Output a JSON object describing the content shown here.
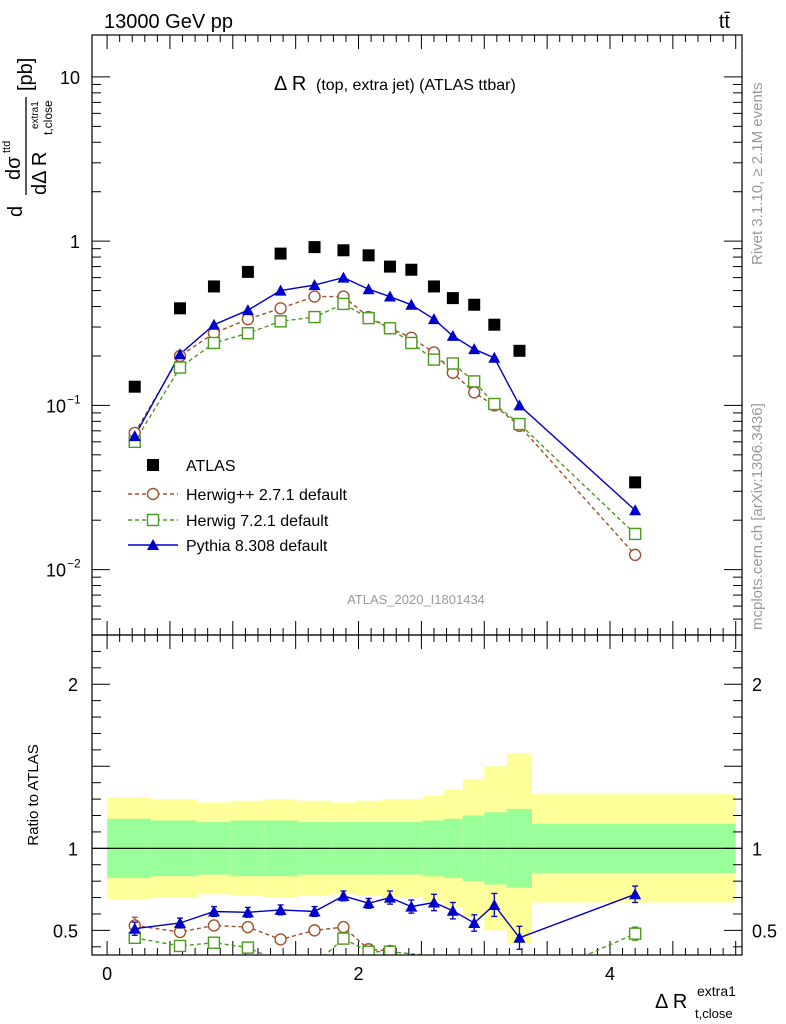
{
  "header": {
    "left": "13000 GeV pp",
    "right": "tt̄"
  },
  "side_labels": {
    "rivet": "Rivet 3.1.10, ≥ 2.1M events",
    "mcplots": "mcplots.cern.ch [arXiv:1306.3436]"
  },
  "watermark": "ATLAS_2020_I1801434",
  "colors": {
    "atlas": "#000000",
    "herwigpp": "#a0522d",
    "herwig7": "#4a9a1c",
    "pythia": "#0000cc",
    "band_inner": "#99ff99",
    "band_outer": "#ffff99"
  },
  "chart_data": [
    {
      "type": "scatter",
      "title": "Δ R (top, extra jet) (ATLAS ttbar)",
      "title_main": "Δ R",
      "title_sub": "(top, extra jet) (ATLAS ttbar)",
      "ylabel": {
        "num": "dσ",
        "num_sup": "ttd",
        "den": "dΔ R",
        "den_sub": "t,close",
        "den_sup": "extra1",
        "unit": "[pb]"
      },
      "xlim": [
        -0.12,
        5.05
      ],
      "ylim": [
        0.004,
        18
      ],
      "yscale": "log",
      "y_ticks": [
        {
          "value": 0.01,
          "base": "10",
          "exp": "−2"
        },
        {
          "value": 0.1,
          "base": "10",
          "exp": "−1"
        },
        {
          "value": 1,
          "base": "1",
          "exp": ""
        },
        {
          "value": 10,
          "base": "10",
          "exp": ""
        }
      ],
      "legend_position": "lower-left",
      "series": [
        {
          "name": "ATLAS",
          "marker": "filled-square",
          "x": [
            0.22,
            0.58,
            0.85,
            1.12,
            1.38,
            1.65,
            1.88,
            2.08,
            2.25,
            2.42,
            2.6,
            2.75,
            2.92,
            3.08,
            3.28,
            4.2
          ],
          "y": [
            0.13,
            0.39,
            0.53,
            0.65,
            0.84,
            0.92,
            0.88,
            0.82,
            0.7,
            0.67,
            0.53,
            0.45,
            0.41,
            0.31,
            0.215,
            0.034
          ]
        },
        {
          "name": "Herwig++ 2.7.1 default",
          "marker": "open-circle",
          "x": [
            0.22,
            0.58,
            0.85,
            1.12,
            1.38,
            1.65,
            1.88,
            2.08,
            2.25,
            2.42,
            2.6,
            2.75,
            2.92,
            3.08,
            3.28,
            4.2
          ],
          "y": [
            0.068,
            0.2,
            0.275,
            0.335,
            0.39,
            0.46,
            0.46,
            0.345,
            0.295,
            0.258,
            0.21,
            0.158,
            0.12,
            0.1,
            0.075,
            0.0123
          ]
        },
        {
          "name": "Herwig 7.2.1 default",
          "marker": "open-square",
          "x": [
            0.22,
            0.58,
            0.85,
            1.12,
            1.38,
            1.65,
            1.88,
            2.08,
            2.25,
            2.42,
            2.6,
            2.75,
            2.92,
            3.08,
            3.28,
            4.2
          ],
          "y": [
            0.06,
            0.17,
            0.24,
            0.275,
            0.325,
            0.345,
            0.415,
            0.34,
            0.295,
            0.24,
            0.19,
            0.18,
            0.14,
            0.102,
            0.077,
            0.0165
          ]
        },
        {
          "name": "Pythia 8.308 default",
          "marker": "filled-triangle",
          "x": [
            0.22,
            0.58,
            0.85,
            1.12,
            1.38,
            1.65,
            1.88,
            2.08,
            2.25,
            2.42,
            2.6,
            2.75,
            2.92,
            3.08,
            3.28,
            4.2
          ],
          "y": [
            0.065,
            0.205,
            0.31,
            0.38,
            0.5,
            0.54,
            0.6,
            0.51,
            0.46,
            0.41,
            0.335,
            0.265,
            0.22,
            0.195,
            0.1,
            0.023
          ]
        }
      ]
    },
    {
      "type": "scatter",
      "ylabel": "Ratio to ATLAS",
      "xlabel": {
        "main": "Δ R",
        "sub": "t,close",
        "sup": "extra1"
      },
      "xlim": [
        -0.12,
        5.05
      ],
      "ylim": [
        0.35,
        2.3
      ],
      "x_ticks": [
        {
          "value": 0,
          "label": "0"
        },
        {
          "value": 2,
          "label": "2"
        },
        {
          "value": 4,
          "label": "4"
        }
      ],
      "y_ticks": [
        {
          "value": 0.5,
          "label": "0.5"
        },
        {
          "value": 1,
          "label": "1"
        },
        {
          "value": 2,
          "label": "2"
        }
      ],
      "bands": {
        "edges": [
          0.0,
          0.35,
          0.72,
          0.98,
          1.25,
          1.52,
          1.78,
          1.98,
          2.18,
          2.33,
          2.51,
          2.68,
          2.83,
          3.0,
          3.18,
          3.38,
          5.0
        ],
        "inner_lo": [
          0.82,
          0.83,
          0.84,
          0.83,
          0.83,
          0.84,
          0.84,
          0.84,
          0.84,
          0.84,
          0.83,
          0.82,
          0.8,
          0.78,
          0.76,
          0.85
        ],
        "inner_hi": [
          1.18,
          1.17,
          1.16,
          1.17,
          1.17,
          1.16,
          1.16,
          1.16,
          1.16,
          1.16,
          1.17,
          1.18,
          1.2,
          1.22,
          1.24,
          1.15
        ],
        "outer_lo": [
          0.69,
          0.7,
          0.72,
          0.71,
          0.7,
          0.71,
          0.72,
          0.71,
          0.7,
          0.7,
          0.68,
          0.64,
          0.58,
          0.5,
          0.42,
          0.67
        ],
        "outer_hi": [
          1.31,
          1.3,
          1.28,
          1.29,
          1.3,
          1.29,
          1.28,
          1.29,
          1.3,
          1.3,
          1.32,
          1.36,
          1.42,
          1.5,
          1.58,
          1.33
        ]
      },
      "series": [
        {
          "name": "Herwig++ 2.7.1 default",
          "x": [
            0.22,
            0.58,
            0.85,
            1.12,
            1.38,
            1.65,
            1.88,
            2.08,
            2.25
          ],
          "y": [
            0.53,
            0.49,
            0.53,
            0.52,
            0.445,
            0.5,
            0.52,
            0.385,
            0.375
          ],
          "err": [
            0.05,
            0.03,
            0.03,
            0.03,
            0.02,
            0.02,
            0.03,
            0.03,
            0.03
          ]
        },
        {
          "name": "Herwig 7.2.1 default",
          "x": [
            0.22,
            0.58,
            0.85,
            1.12,
            1.38,
            1.65,
            1.88,
            2.08,
            2.25,
            3.58,
            4.2
          ],
          "y": [
            0.455,
            0.405,
            0.425,
            0.395,
            0.31,
            0.29,
            0.45,
            0.37,
            0.37,
            0.27,
            0.48
          ],
          "err": [
            0.03,
            0.02,
            0.02,
            0.02,
            0.02,
            0.02,
            0.02,
            0.02,
            0.02,
            0.02,
            0.04
          ]
        },
        {
          "name": "Pythia 8.308 default",
          "x": [
            0.22,
            0.58,
            0.85,
            1.12,
            1.38,
            1.65,
            1.88,
            2.08,
            2.25,
            2.42,
            2.6,
            2.75,
            2.92,
            3.08,
            3.28,
            4.2
          ],
          "y": [
            0.51,
            0.545,
            0.615,
            0.61,
            0.625,
            0.615,
            0.71,
            0.665,
            0.7,
            0.645,
            0.67,
            0.62,
            0.545,
            0.655,
            0.455,
            0.72
          ],
          "err": [
            0.04,
            0.03,
            0.03,
            0.03,
            0.03,
            0.03,
            0.03,
            0.03,
            0.04,
            0.04,
            0.05,
            0.05,
            0.05,
            0.07,
            0.07,
            0.05
          ]
        }
      ]
    }
  ]
}
